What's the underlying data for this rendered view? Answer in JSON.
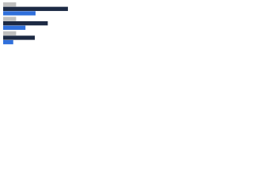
{
  "chart_data": {
    "type": "hbar",
    "categories": [
      null,
      null,
      null
    ],
    "series": [
      {
        "color": "#bfbfbf",
        "values": [
          18,
          18,
          18
        ]
      },
      {
        "color": "#1d2a44",
        "values": [
          90,
          62,
          44
        ]
      },
      {
        "color": "#2f6fdb",
        "values": [
          45,
          31,
          14
        ]
      }
    ],
    "xlim": [
      0,
      100
    ]
  }
}
